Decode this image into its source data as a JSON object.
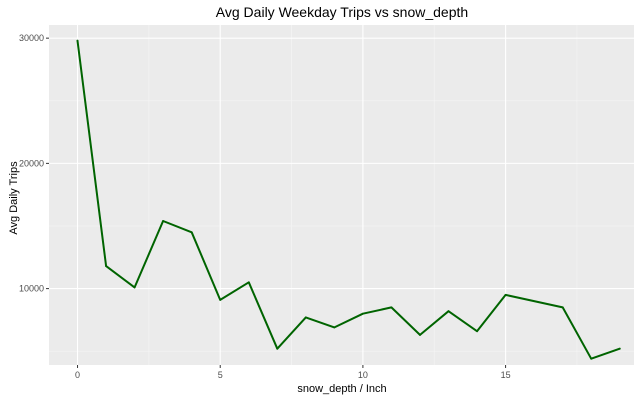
{
  "chart_data": {
    "type": "line",
    "title": "Avg Daily Weekday Trips vs snow_depth",
    "xlabel": "snow_depth / Inch",
    "ylabel": "Avg Daily Trips",
    "xlim": [
      -1,
      19.5
    ],
    "ylim": [
      3900,
      31050
    ],
    "x_ticks": [
      0,
      5,
      10,
      15
    ],
    "x_tick_labels": [
      "0",
      "5",
      "10",
      "15"
    ],
    "y_ticks": [
      10000,
      20000,
      30000
    ],
    "y_tick_labels": [
      "10000",
      "20000",
      "30000"
    ],
    "grid": true,
    "series": [
      {
        "color": "#006400",
        "x": [
          0,
          1,
          2,
          3,
          4,
          5,
          6,
          7,
          8,
          9,
          10,
          11,
          12,
          13,
          14,
          15,
          17,
          18,
          19
        ],
        "y": [
          29800,
          11800,
          10100,
          15400,
          14500,
          9100,
          10500,
          5200,
          7700,
          6900,
          8000,
          8500,
          6300,
          8200,
          6600,
          9500,
          8500,
          4400,
          5200
        ]
      }
    ],
    "colors": {
      "panel_background": "#ebebeb",
      "grid_major": "#ffffff",
      "grid_minor": "#f5f5f5",
      "tick_mark": "#333333"
    }
  }
}
